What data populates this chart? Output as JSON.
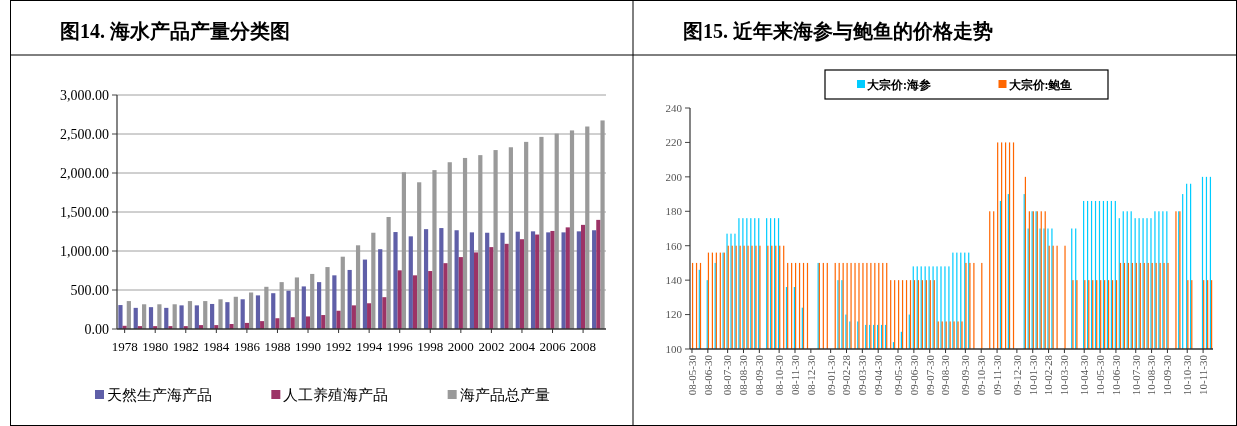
{
  "chart_data": [
    {
      "type": "bar",
      "title": "图14. 海水产品产量分类图",
      "categories": [
        "1978",
        null,
        "1980",
        null,
        "1982",
        null,
        "1984",
        null,
        "1986",
        null,
        "1988",
        null,
        "1990",
        null,
        "1992",
        null,
        "1994",
        null,
        "1996",
        null,
        "1998",
        null,
        "2000",
        null,
        "2002",
        null,
        "2004",
        null,
        "2006",
        null,
        "2008",
        null
      ],
      "ylim": [
        0,
        3000
      ],
      "yticks": [
        {
          "value": 0,
          "label": "0.00"
        },
        {
          "value": 500,
          "label": "500.00"
        },
        {
          "value": 1000,
          "label": "1,000.00"
        },
        {
          "value": 1500,
          "label": "1,500.00"
        },
        {
          "value": 2000,
          "label": "2,000.00"
        },
        {
          "value": 2500,
          "label": "2,500.00"
        },
        {
          "value": 3000,
          "label": "3,000.00"
        }
      ],
      "grid": "y",
      "legend": "bottom",
      "series": [
        {
          "name": "天然生产海产品",
          "color": "#5f5fa8",
          "values": [
            307,
            271,
            280,
            271,
            303,
            303,
            321,
            344,
            381,
            431,
            459,
            491,
            546,
            601,
            688,
            757,
            890,
            1023,
            1243,
            1188,
            1280,
            1294,
            1266,
            1239,
            1234,
            1234,
            1248,
            1252,
            1239,
            1239,
            1252,
            1266
          ]
        },
        {
          "name": "人工养殖海产品",
          "color": "#9c3366",
          "values": [
            41,
            37,
            37,
            37,
            37,
            50,
            50,
            64,
            78,
            101,
            138,
            151,
            161,
            179,
            234,
            303,
            330,
            408,
            752,
            688,
            743,
            844,
            922,
            982,
            1050,
            1092,
            1151,
            1211,
            1257,
            1303,
            1335,
            1399
          ]
        },
        {
          "name": "海产品总产量",
          "color": "#9a9a9a",
          "values": [
            358,
            317,
            317,
            317,
            358,
            358,
            381,
            413,
            468,
            541,
            601,
            661,
            706,
            794,
            927,
            1073,
            1234,
            1436,
            2009,
            1881,
            2037,
            2138,
            2193,
            2229,
            2294,
            2330,
            2399,
            2463,
            2505,
            2546,
            2596,
            2674
          ]
        }
      ]
    },
    {
      "type": "bar",
      "title": "图15. 近年来海参与鲍鱼的价格走势",
      "categories": [
        "08-05-30",
        null,
        null,
        null,
        "08-06-30",
        null,
        null,
        null,
        null,
        "08-07-30",
        null,
        null,
        null,
        "08-08-30",
        null,
        null,
        null,
        "08-09-30",
        null,
        null,
        null,
        null,
        "08-10-30",
        null,
        null,
        null,
        "08-11-30",
        null,
        null,
        null,
        "08-12-30",
        null,
        null,
        null,
        null,
        "09-01-30",
        null,
        null,
        null,
        "09-02-28",
        null,
        null,
        null,
        "09-03-30",
        null,
        null,
        null,
        "09-04-30",
        null,
        null,
        null,
        null,
        "09-05-30",
        null,
        null,
        null,
        "09-06-30",
        null,
        null,
        null,
        "09-07-30",
        null,
        null,
        null,
        "09-08-30",
        null,
        null,
        null,
        null,
        "09-09-30",
        null,
        null,
        null,
        "09-10-30",
        null,
        null,
        null,
        "09-11-30",
        null,
        null,
        null,
        null,
        "09-12-30",
        null,
        null,
        null,
        "10-01-30",
        null,
        null,
        null,
        "10-02-28",
        null,
        null,
        null,
        "10-03-30",
        null,
        null,
        null,
        null,
        "10-04-30",
        null,
        null,
        null,
        "10-05-30",
        null,
        null,
        null,
        "10-06-30",
        null,
        null,
        null,
        null,
        "10-07-30",
        null,
        null,
        null,
        "10-08-30",
        null,
        null,
        null,
        "10-09-30",
        null,
        null,
        null,
        null,
        "10-10-30",
        null,
        null,
        null,
        "10-11-30",
        null,
        null
      ],
      "ylim": [
        100,
        240
      ],
      "yticks": [
        100,
        120,
        140,
        160,
        180,
        200,
        220,
        240
      ],
      "legend": "top",
      "series": [
        {
          "name": "大宗价:海参",
          "color": "#00ccff",
          "values": [
            null,
            null,
            146,
            null,
            140,
            null,
            150,
            null,
            156,
            167,
            167,
            167,
            176,
            176,
            176,
            176,
            176,
            176,
            null,
            176,
            176,
            176,
            176,
            null,
            136,
            null,
            136,
            null,
            124,
            null,
            null,
            null,
            150,
            null,
            null,
            null,
            null,
            140,
            140,
            120,
            116,
            null,
            116,
            null,
            114,
            114,
            114,
            114,
            114,
            114,
            null,
            104,
            null,
            110,
            null,
            120,
            148,
            148,
            148,
            148,
            148,
            148,
            148,
            148,
            148,
            148,
            156,
            156,
            156,
            156,
            156,
            null,
            null,
            null,
            null,
            null,
            null,
            null,
            186,
            null,
            190,
            null,
            null,
            null,
            190,
            170,
            180,
            180,
            170,
            170,
            170,
            170,
            null,
            null,
            null,
            null,
            170,
            170,
            null,
            186,
            186,
            186,
            186,
            186,
            186,
            186,
            186,
            186,
            176,
            180,
            180,
            180,
            176,
            176,
            176,
            176,
            176,
            180,
            180,
            180,
            180,
            null,
            null,
            180,
            190,
            196,
            196,
            null,
            null,
            200,
            200,
            200
          ]
        },
        {
          "name": "大宗价:鲍鱼",
          "color": "#ff6600",
          "values": [
            150,
            150,
            150,
            null,
            156,
            156,
            156,
            156,
            156,
            160,
            160,
            160,
            160,
            160,
            160,
            160,
            160,
            160,
            null,
            160,
            160,
            160,
            160,
            160,
            150,
            150,
            150,
            150,
            150,
            150,
            null,
            null,
            150,
            150,
            150,
            null,
            150,
            150,
            150,
            150,
            150,
            150,
            150,
            150,
            150,
            150,
            150,
            150,
            150,
            150,
            140,
            140,
            140,
            140,
            140,
            140,
            140,
            140,
            140,
            140,
            140,
            140,
            116,
            116,
            116,
            116,
            116,
            116,
            116,
            150,
            150,
            150,
            null,
            150,
            null,
            180,
            180,
            220,
            220,
            220,
            220,
            220,
            null,
            null,
            200,
            180,
            180,
            180,
            180,
            180,
            160,
            160,
            160,
            null,
            160,
            null,
            140,
            140,
            null,
            140,
            140,
            140,
            140,
            140,
            140,
            140,
            140,
            140,
            150,
            150,
            150,
            150,
            150,
            150,
            150,
            150,
            150,
            150,
            150,
            150,
            150,
            null,
            180,
            180,
            null,
            140,
            140,
            null,
            null,
            140,
            140,
            140
          ]
        }
      ]
    }
  ]
}
